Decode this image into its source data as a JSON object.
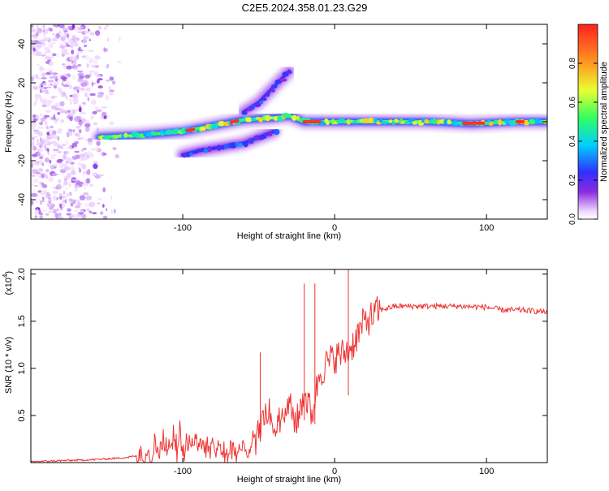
{
  "figure_title": "C2E5.2024.358.01.23.G29",
  "colorbar": {
    "label": "Normalized spectral amplitude",
    "ticks": [
      "0.0",
      "0.2",
      "0.4",
      "0.6",
      "0.8"
    ],
    "tick_values": [
      0.0,
      0.2,
      0.4,
      0.6,
      0.8
    ]
  },
  "chart_data": [
    {
      "type": "heatmap",
      "title": "",
      "xlabel": "Height of straight line (km)",
      "ylabel": "Frequency (Hz)",
      "xlim": [
        -200,
        140
      ],
      "ylim": [
        -50,
        50
      ],
      "xticks": [
        -100,
        0,
        100
      ],
      "xtick_labels": [
        "-100",
        "0",
        "100"
      ],
      "yticks": [
        -40,
        -20,
        0,
        20,
        40
      ],
      "ytick_labels": [
        "-40",
        "-20",
        "0",
        "20",
        "40"
      ],
      "value_range": [
        0,
        1
      ],
      "description_traces": [
        {
          "name": "main",
          "points": [
            [
              -155,
              -8
            ],
            [
              -130,
              -7
            ],
            [
              -100,
              -5
            ],
            [
              -80,
              -2
            ],
            [
              -60,
              1
            ],
            [
              -40,
              2
            ],
            [
              -30,
              3
            ],
            [
              -20,
              0
            ],
            [
              -10,
              0
            ],
            [
              0,
              0
            ],
            [
              20,
              0
            ],
            [
              60,
              0
            ],
            [
              90,
              -1
            ],
            [
              120,
              0
            ],
            [
              140,
              0
            ]
          ],
          "amplitude": 0.75
        },
        {
          "name": "upper-branch",
          "points": [
            [
              -60,
              5
            ],
            [
              -50,
              10
            ],
            [
              -45,
              14
            ],
            [
              -40,
              18
            ],
            [
              -35,
              22
            ],
            [
              -30,
              26
            ]
          ],
          "amplitude": 0.3
        },
        {
          "name": "lower-branch",
          "points": [
            [
              -100,
              -17
            ],
            [
              -90,
              -15
            ],
            [
              -75,
              -13
            ],
            [
              -60,
              -11
            ],
            [
              -50,
              -8
            ],
            [
              -40,
              -5
            ]
          ],
          "amplitude": 0.35
        }
      ],
      "noise_region": {
        "x": [
          -200,
          -140
        ],
        "y": [
          -50,
          50
        ]
      }
    },
    {
      "type": "line",
      "title": "",
      "xlabel": "Height of straight line (km)",
      "ylabel": "SNR (10 * v/v)",
      "multiplier_label": "(x10",
      "multiplier_exp": "4",
      "multiplier_close": ")",
      "xlim": [
        -200,
        140
      ],
      "ylim": [
        0,
        2.05
      ],
      "xticks": [
        -100,
        0,
        100
      ],
      "xtick_labels": [
        "-100",
        "0",
        "100"
      ],
      "yticks": [
        0.5,
        1.0,
        1.5,
        2.0
      ],
      "ytick_labels": [
        "0.5",
        "1.0",
        "1.5",
        "2.0"
      ],
      "color": "#ee3333",
      "x": [
        -200,
        -180,
        -160,
        -140,
        -130,
        -120,
        -110,
        -100,
        -90,
        -80,
        -70,
        -60,
        -50,
        -45,
        -40,
        -35,
        -30,
        -25,
        -20,
        -15,
        -10,
        -5,
        0,
        5,
        10,
        15,
        20,
        25,
        30,
        40,
        50,
        60,
        80,
        100,
        110,
        120,
        130,
        140
      ],
      "y": [
        0.01,
        0.02,
        0.03,
        0.05,
        0.07,
        0.12,
        0.18,
        0.25,
        0.22,
        0.18,
        0.1,
        0.12,
        0.35,
        0.55,
        0.35,
        0.5,
        0.6,
        0.42,
        0.75,
        0.5,
        0.95,
        1.05,
        1.12,
        1.15,
        1.2,
        1.35,
        1.5,
        1.55,
        1.62,
        1.66,
        1.66,
        1.66,
        1.66,
        1.65,
        1.62,
        1.62,
        1.61,
        1.6
      ],
      "spikes": [
        {
          "x": -49,
          "y": 1.17
        },
        {
          "x": -20,
          "y": 1.9
        },
        {
          "x": -13,
          "y": 1.9
        },
        {
          "x": 9,
          "y": 2.05
        }
      ]
    }
  ]
}
